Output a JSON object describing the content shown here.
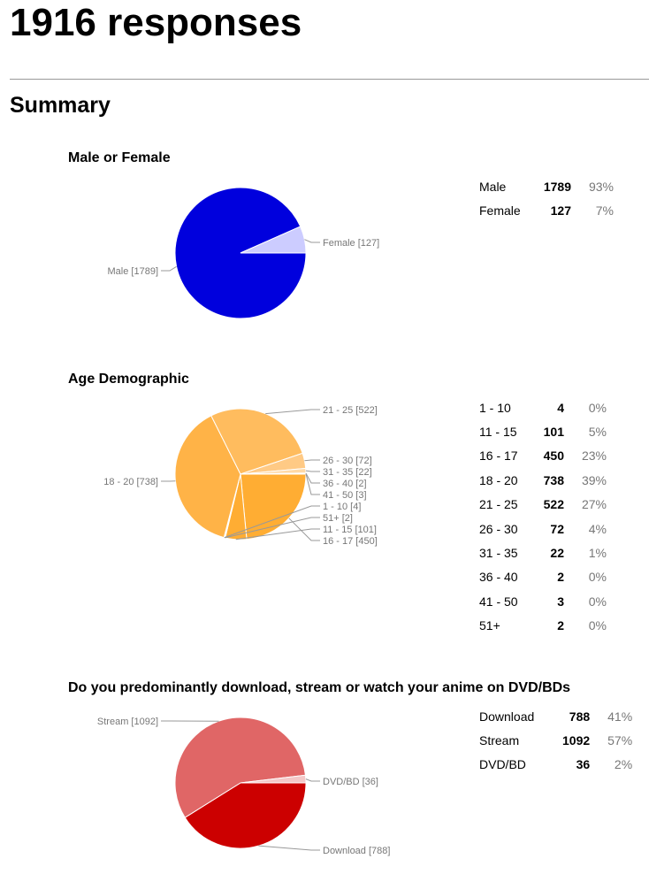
{
  "page": {
    "title": "1916 responses",
    "summary_heading": "Summary"
  },
  "sections": [
    {
      "title": "Male or Female",
      "rows": [
        {
          "label": "Male",
          "count": "1789",
          "pct": "93%"
        },
        {
          "label": "Female",
          "count": "127",
          "pct": "7%"
        }
      ]
    },
    {
      "title": "Age Demographic",
      "rows": [
        {
          "label": "1 - 10",
          "count": "4",
          "pct": "0%"
        },
        {
          "label": "11 - 15",
          "count": "101",
          "pct": "5%"
        },
        {
          "label": "16 - 17",
          "count": "450",
          "pct": "23%"
        },
        {
          "label": "18 - 20",
          "count": "738",
          "pct": "39%"
        },
        {
          "label": "21 - 25",
          "count": "522",
          "pct": "27%"
        },
        {
          "label": "26 - 30",
          "count": "72",
          "pct": "4%"
        },
        {
          "label": "31 - 35",
          "count": "22",
          "pct": "1%"
        },
        {
          "label": "36 - 40",
          "count": "2",
          "pct": "0%"
        },
        {
          "label": "41 - 50",
          "count": "3",
          "pct": "0%"
        },
        {
          "label": "51+",
          "count": "2",
          "pct": "0%"
        }
      ]
    },
    {
      "title": "Do you predominantly download, stream or watch your anime on DVD/BDs",
      "rows": [
        {
          "label": "Download",
          "count": "788",
          "pct": "41%"
        },
        {
          "label": "Stream",
          "count": "1092",
          "pct": "57%"
        },
        {
          "label": "DVD/BD",
          "count": "36",
          "pct": "2%"
        }
      ]
    }
  ],
  "chart_data": [
    {
      "type": "pie",
      "title": "Male or Female",
      "slices": [
        {
          "label": "Female",
          "value": 127,
          "color": "#ccccff"
        },
        {
          "label": "Male",
          "value": 1789,
          "color": "#0000dd"
        }
      ]
    },
    {
      "type": "pie",
      "title": "Age Demographic",
      "slices": [
        {
          "label": "1 - 10",
          "value": 4,
          "color": "#ffb347"
        },
        {
          "label": "11 - 15",
          "value": 101,
          "color": "#ffad33"
        },
        {
          "label": "16 - 17",
          "value": 450,
          "color": "#ffad33"
        },
        {
          "label": "18 - 20",
          "value": 738,
          "color": "#ffb347"
        },
        {
          "label": "21 - 25",
          "value": 522,
          "color": "#ffbc5e"
        },
        {
          "label": "26 - 30",
          "value": 72,
          "color": "#ffca85"
        },
        {
          "label": "31 - 35",
          "value": 22,
          "color": "#ffd9a6"
        },
        {
          "label": "36 - 40",
          "value": 2,
          "color": "#ffc870"
        },
        {
          "label": "41 - 50",
          "value": 3,
          "color": "#ffc870"
        },
        {
          "label": "51+",
          "value": 2,
          "color": "#ffb347"
        }
      ],
      "note": "slice order follows the chart: 1-10 … 16-17 below the horizontal, 18-20 … 51+ going round"
    },
    {
      "type": "pie",
      "title": "Do you predominantly download, stream or watch your anime on DVD/BDs",
      "slices": [
        {
          "label": "DVD/BD",
          "value": 36,
          "color": "#f4c8c8"
        },
        {
          "label": "Stream",
          "value": 1092,
          "color": "#e06666"
        },
        {
          "label": "Download",
          "value": 788,
          "color": "#cc0000"
        }
      ]
    }
  ]
}
